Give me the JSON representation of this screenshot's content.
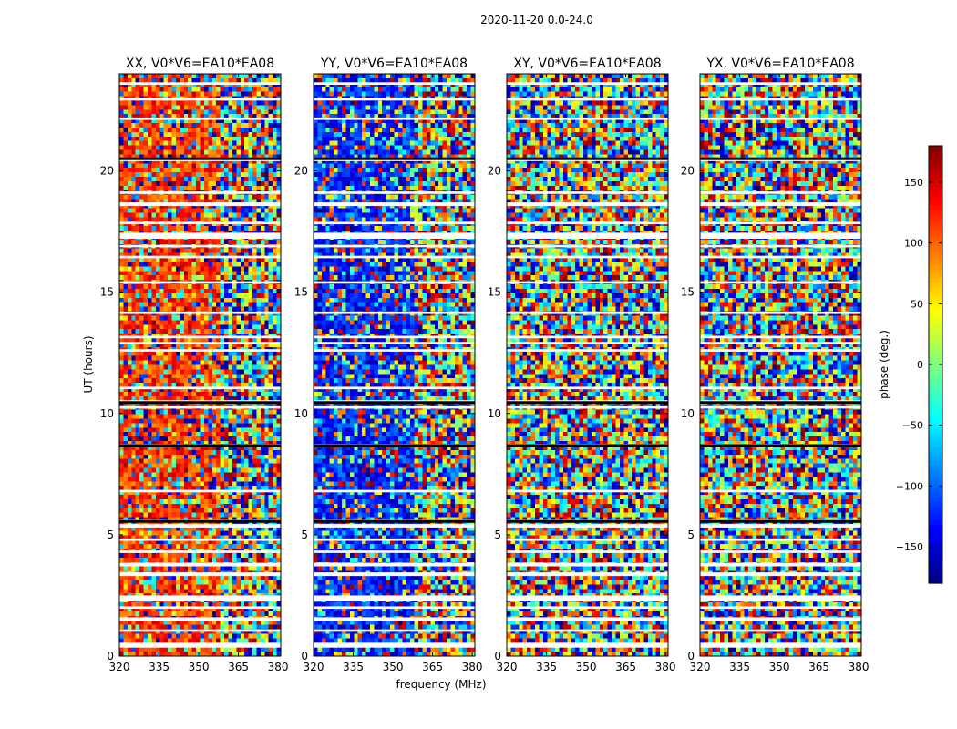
{
  "chart_data": {
    "type": "heatmap",
    "suptitle": "2020-11-20 0.0-24.0",
    "xlabel": "frequency (MHz)",
    "ylabel": "UT (hours)",
    "xlim": [
      320,
      381
    ],
    "ylim": [
      0,
      24
    ],
    "xticks": [
      320,
      335,
      350,
      365,
      380
    ],
    "yticks": [
      0,
      5,
      10,
      15,
      20
    ],
    "panels": [
      {
        "title": "XX, V0*V6=EA10*EA08",
        "bias": 115,
        "bias_color": "#ff7a00"
      },
      {
        "title": "YY, V0*V6=EA10*EA08",
        "bias": -125,
        "bias_color": "#1e6bff"
      },
      {
        "title": "XY, V0*V6=EA10*EA08",
        "bias": 0,
        "bias_color": "#7fff7f"
      },
      {
        "title": "YX, V0*V6=EA10*EA08",
        "bias": 0,
        "bias_color": "#7fff7f"
      }
    ],
    "colorbar": {
      "label": "phase (deg.)",
      "range": [
        -180,
        180
      ],
      "ticks": [
        150,
        100,
        50,
        0,
        -50,
        -100,
        -150
      ],
      "tick_labels": [
        "150",
        "100",
        "50",
        "0",
        "−50",
        "−100",
        "−150"
      ],
      "colormap": "jet"
    },
    "flagged_hours": [
      [
        0.35,
        0.55
      ],
      [
        1.0,
        1.1
      ],
      [
        1.45,
        1.6
      ],
      [
        1.95,
        2.05
      ],
      [
        2.25,
        2.5
      ],
      [
        3.3,
        3.45
      ],
      [
        3.7,
        3.85
      ],
      [
        4.25,
        4.35
      ],
      [
        4.75,
        4.85
      ],
      [
        5.3,
        5.45
      ],
      [
        5.5,
        5.62
      ],
      [
        6.75,
        6.85
      ],
      [
        8.6,
        8.75
      ],
      [
        10.2,
        10.32
      ],
      [
        10.42,
        10.55
      ],
      [
        11.0,
        11.1
      ],
      [
        12.55,
        12.65
      ],
      [
        12.85,
        12.95
      ],
      [
        13.1,
        13.2
      ],
      [
        14.1,
        14.2
      ],
      [
        15.35,
        15.45
      ],
      [
        16.4,
        16.5
      ],
      [
        16.85,
        16.95
      ],
      [
        17.2,
        17.45
      ],
      [
        17.8,
        17.9
      ],
      [
        18.55,
        18.7
      ],
      [
        19.05,
        19.15
      ],
      [
        20.4,
        20.55
      ],
      [
        22.1,
        22.2
      ],
      [
        22.9,
        23.0
      ],
      [
        23.55,
        23.65
      ]
    ]
  }
}
